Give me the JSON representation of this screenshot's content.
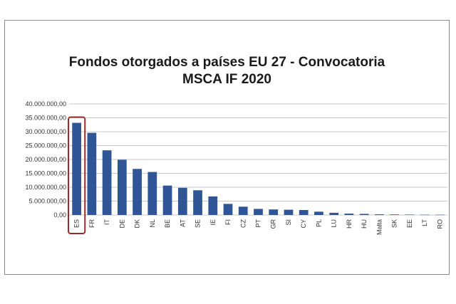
{
  "chart_data": {
    "type": "bar",
    "title": "Fondos otorgados a países EU 27 - Convocatoria",
    "subtitle": "MSCA IF 2020",
    "xlabel": "",
    "ylabel": "",
    "ylim": [
      0,
      40000000
    ],
    "yticks": [
      "0,00",
      "5.000.000,00",
      "10.000.000,00",
      "15.000.000,00",
      "20.000.000,00",
      "25.000.000,00",
      "30.000.000,00",
      "35.000.000,00",
      "40.000.000,00"
    ],
    "grid": true,
    "legend": "none",
    "bar_color": "#2f5597",
    "highlight_color": "#9b2a2a",
    "highlight_category": "ES",
    "categories": [
      "ES",
      "FR",
      "IT",
      "DE",
      "DK",
      "NL",
      "BE",
      "AT",
      "SE",
      "IE",
      "FI",
      "CZ",
      "PT",
      "GR",
      "SI",
      "CY",
      "PL",
      "LU",
      "HR",
      "HU",
      "Malta",
      "SK",
      "EE",
      "LT",
      "RO"
    ],
    "values": [
      33200000,
      29600000,
      23300000,
      19900000,
      16600000,
      15500000,
      10600000,
      9800000,
      8900000,
      6700000,
      4000000,
      3000000,
      2200000,
      2000000,
      1900000,
      1800000,
      1200000,
      800000,
      500000,
      400000,
      250000,
      200000,
      150000,
      100000,
      100000
    ]
  }
}
